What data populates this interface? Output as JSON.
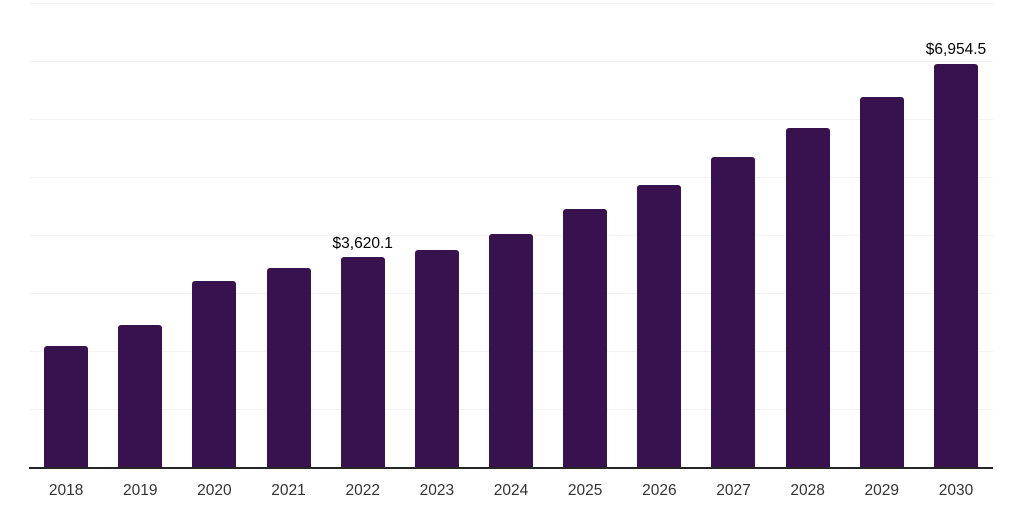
{
  "chart_data": {
    "type": "bar",
    "categories": [
      "2018",
      "2019",
      "2020",
      "2021",
      "2022",
      "2023",
      "2024",
      "2025",
      "2026",
      "2027",
      "2028",
      "2029",
      "2030"
    ],
    "values": [
      2085,
      2450,
      3205,
      3430,
      3620.1,
      3740,
      4015,
      4450,
      4860,
      5345,
      5845,
      6380,
      6954.5
    ],
    "value_labels": {
      "2022": "$3,620.1",
      "2030": "$6,954.5"
    },
    "xlabel": "",
    "ylabel": "",
    "ylim": [
      0,
      8000
    ],
    "gridline_step": 1000,
    "grid": true,
    "legend": false,
    "colors": {
      "bar": "#37124E",
      "gridline": "#F2F2F2",
      "axis_line": "#262626",
      "tick_label": "#333333",
      "value_label": "#000000",
      "background": "#FFFFFF"
    }
  }
}
